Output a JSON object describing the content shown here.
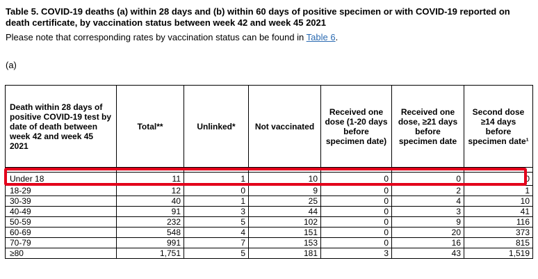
{
  "title": "Table 5. COVID-19 deaths (a) within 28 days and (b) within 60 days of positive specimen or with COVID-19 reported on death certificate, by vaccination status between week 42 and week 45 2021",
  "note": {
    "text": "Please note that corresponding rates by vaccination status can be found in ",
    "link": "Table 6",
    "end": "."
  },
  "subheading": "(a)",
  "table": {
    "headers": [
      "Death within 28 days of positive COVID-19 test by date of death between week 42 and week 45 2021",
      "Total**",
      "Unlinked*",
      "Not vaccinated",
      "Received one dose (1-20 days before specimen date)",
      "Received one dose, ≥21 days before specimen date",
      "Second dose ≥14 days before specimen date¹"
    ],
    "rows": [
      [
        "Under 18",
        "11",
        "1",
        "10",
        "0",
        "0",
        "0"
      ],
      [
        "18-29",
        "12",
        "0",
        "9",
        "0",
        "2",
        "1"
      ],
      [
        "30-39",
        "40",
        "1",
        "25",
        "0",
        "4",
        "10"
      ],
      [
        "40-49",
        "91",
        "3",
        "44",
        "0",
        "3",
        "41"
      ],
      [
        "50-59",
        "232",
        "5",
        "102",
        "0",
        "9",
        "116"
      ],
      [
        "60-69",
        "548",
        "4",
        "151",
        "0",
        "20",
        "373"
      ],
      [
        "70-79",
        "991",
        "7",
        "153",
        "0",
        "16",
        "815"
      ],
      [
        "≥80",
        "1,751",
        "5",
        "181",
        "3",
        "43",
        "1,519"
      ]
    ]
  },
  "highlight_color": "#e3001b",
  "link_color": "#2b6bb2"
}
